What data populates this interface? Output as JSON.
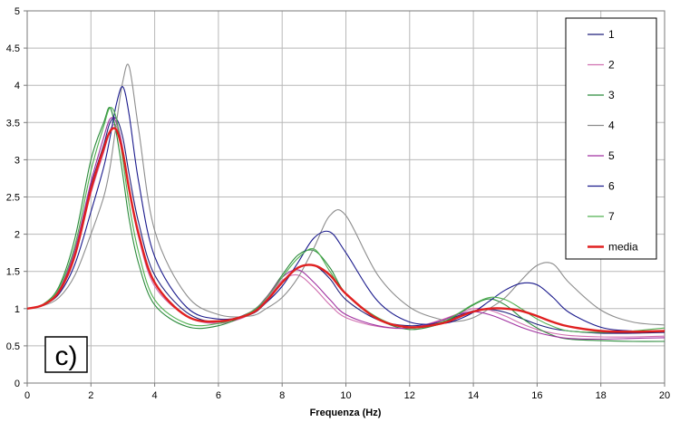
{
  "chart_data": {
    "type": "line",
    "title": "",
    "xlabel": "Frequenza (Hz)",
    "ylabel": "",
    "panel_label": "c)",
    "xlim": [
      0,
      20
    ],
    "ylim": [
      0,
      5
    ],
    "xticks": [
      0,
      2,
      4,
      6,
      8,
      10,
      12,
      14,
      16,
      18,
      20
    ],
    "yticks": [
      0,
      0.5,
      1,
      1.5,
      2,
      2.5,
      3,
      3.5,
      4,
      4.5,
      5
    ],
    "xtick_labels": [
      "0",
      "2",
      "4",
      "6",
      "8",
      "10",
      "12",
      "14",
      "16",
      "18",
      "20"
    ],
    "ytick_labels": [
      "0",
      "0.5",
      "1",
      "1.5",
      "2",
      "2.5",
      "3",
      "3.5",
      "4",
      "4.5",
      "5"
    ],
    "grid": true,
    "legend_position": "top-right",
    "x": [
      0,
      0.5,
      1,
      1.5,
      2,
      2.4,
      2.6,
      2.8,
      3.0,
      3.2,
      3.5,
      4.0,
      5.0,
      6.0,
      7.0,
      7.5,
      8.0,
      8.5,
      9.0,
      9.5,
      10.0,
      11.0,
      12.0,
      13.0,
      13.5,
      14.0,
      14.5,
      15.0,
      15.5,
      16.0,
      16.5,
      17.0,
      18.0,
      19.0,
      20.0
    ],
    "series": [
      {
        "name": "1",
        "color": "#1f1f7a",
        "values": [
          1.0,
          1.05,
          1.25,
          1.75,
          2.65,
          3.2,
          3.5,
          3.55,
          3.3,
          2.8,
          2.15,
          1.45,
          0.95,
          0.82,
          0.95,
          1.12,
          1.35,
          1.55,
          1.58,
          1.4,
          1.12,
          0.85,
          0.77,
          0.82,
          0.9,
          0.97,
          0.99,
          0.95,
          0.87,
          0.79,
          0.73,
          0.7,
          0.67,
          0.67,
          0.68
        ]
      },
      {
        "name": "2",
        "color": "#d070b0",
        "values": [
          1.0,
          1.05,
          1.25,
          1.75,
          2.55,
          3.1,
          3.4,
          3.45,
          3.1,
          2.6,
          1.95,
          1.3,
          0.9,
          0.8,
          0.92,
          1.12,
          1.38,
          1.45,
          1.28,
          1.05,
          0.88,
          0.76,
          0.74,
          0.85,
          0.93,
          1.0,
          0.98,
          0.9,
          0.8,
          0.72,
          0.67,
          0.64,
          0.62,
          0.62,
          0.63
        ]
      },
      {
        "name": "3",
        "color": "#2a8a3a",
        "values": [
          1.0,
          1.06,
          1.3,
          1.95,
          3.0,
          3.5,
          3.7,
          3.35,
          2.8,
          2.2,
          1.6,
          1.05,
          0.76,
          0.77,
          0.95,
          1.15,
          1.45,
          1.72,
          1.78,
          1.55,
          1.2,
          0.86,
          0.72,
          0.8,
          0.92,
          1.05,
          1.13,
          1.05,
          0.88,
          0.74,
          0.64,
          0.59,
          0.57,
          0.56,
          0.56
        ]
      },
      {
        "name": "4",
        "color": "#8c8c8c",
        "values": [
          1.0,
          1.04,
          1.15,
          1.45,
          2.0,
          2.5,
          2.9,
          3.5,
          4.05,
          4.25,
          3.4,
          2.05,
          1.18,
          0.92,
          0.9,
          1.0,
          1.15,
          1.42,
          1.82,
          2.25,
          2.25,
          1.45,
          1.02,
          0.85,
          0.83,
          0.88,
          1.0,
          1.15,
          1.38,
          1.58,
          1.6,
          1.35,
          0.98,
          0.82,
          0.78
        ]
      },
      {
        "name": "5",
        "color": "#a030a0",
        "values": [
          1.0,
          1.05,
          1.25,
          1.8,
          2.7,
          3.3,
          3.55,
          3.5,
          3.15,
          2.6,
          2.0,
          1.35,
          0.9,
          0.82,
          0.95,
          1.15,
          1.42,
          1.52,
          1.35,
          1.12,
          0.92,
          0.77,
          0.74,
          0.84,
          0.92,
          0.96,
          0.92,
          0.84,
          0.75,
          0.68,
          0.63,
          0.6,
          0.59,
          0.6,
          0.61
        ]
      },
      {
        "name": "6",
        "color": "#1a1a8c",
        "values": [
          1.0,
          1.05,
          1.2,
          1.6,
          2.3,
          2.9,
          3.3,
          3.75,
          3.98,
          3.6,
          2.7,
          1.7,
          1.02,
          0.86,
          0.92,
          1.08,
          1.3,
          1.62,
          1.95,
          2.03,
          1.75,
          1.1,
          0.82,
          0.8,
          0.85,
          0.95,
          1.1,
          1.25,
          1.34,
          1.32,
          1.15,
          0.95,
          0.75,
          0.7,
          0.7
        ]
      },
      {
        "name": "7",
        "color": "#50b050",
        "values": [
          1.0,
          1.06,
          1.28,
          1.85,
          2.85,
          3.45,
          3.7,
          3.55,
          3.0,
          2.4,
          1.75,
          1.12,
          0.8,
          0.8,
          0.95,
          1.14,
          1.42,
          1.68,
          1.8,
          1.5,
          1.2,
          0.88,
          0.74,
          0.82,
          0.93,
          1.06,
          1.15,
          1.12,
          1.0,
          0.86,
          0.76,
          0.7,
          0.68,
          0.7,
          0.74
        ]
      },
      {
        "name": "media",
        "color": "#e02020",
        "values": [
          1.0,
          1.05,
          1.23,
          1.72,
          2.6,
          3.15,
          3.38,
          3.4,
          3.1,
          2.6,
          2.0,
          1.35,
          0.9,
          0.83,
          0.93,
          1.1,
          1.35,
          1.55,
          1.58,
          1.45,
          1.2,
          0.86,
          0.75,
          0.8,
          0.88,
          0.96,
          1.0,
          1.0,
          0.97,
          0.9,
          0.82,
          0.76,
          0.7,
          0.69,
          0.7
        ]
      }
    ]
  }
}
